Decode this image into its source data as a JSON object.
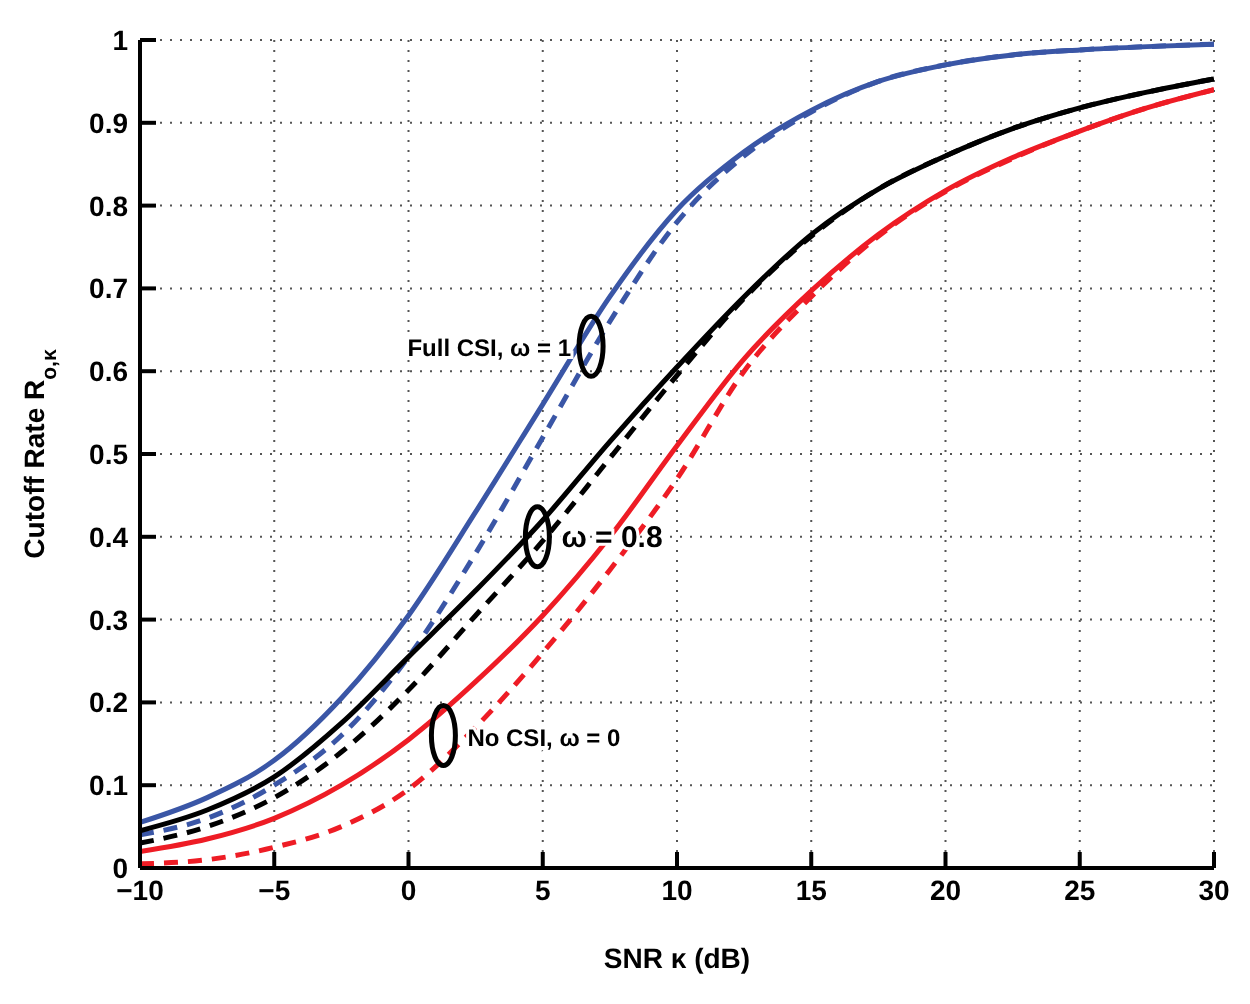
{
  "chart_data": {
    "type": "line",
    "xlabel": "SNR κ (dB)",
    "ylabel": "Cutoff Rate R$_{o,κ}$",
    "x": [
      -10,
      -7.5,
      -5,
      -2.5,
      0,
      2.5,
      5,
      7.5,
      10,
      12.5,
      15,
      17.5,
      20,
      22.5,
      25,
      27.5,
      30
    ],
    "series": [
      {
        "color": "#3a56a6",
        "line_style": "solid",
        "values": [
          0.055,
          0.085,
          0.13,
          0.205,
          0.305,
          0.43,
          0.56,
          0.69,
          0.795,
          0.865,
          0.915,
          0.95,
          0.97,
          0.982,
          0.988,
          0.992,
          0.995
        ]
      },
      {
        "color": "#3a56a6",
        "line_style": "dashed",
        "values": [
          0.04,
          0.06,
          0.1,
          0.16,
          0.255,
          0.38,
          0.52,
          0.66,
          0.78,
          0.86,
          0.913,
          0.95,
          0.97,
          0.982,
          0.988,
          0.992,
          0.995
        ]
      },
      {
        "color": "#000000",
        "line_style": "solid",
        "values": [
          0.045,
          0.07,
          0.11,
          0.175,
          0.255,
          0.335,
          0.42,
          0.515,
          0.605,
          0.69,
          0.765,
          0.82,
          0.86,
          0.893,
          0.918,
          0.937,
          0.953
        ]
      },
      {
        "color": "#000000",
        "line_style": "dashed",
        "values": [
          0.03,
          0.05,
          0.085,
          0.14,
          0.215,
          0.305,
          0.395,
          0.495,
          0.595,
          0.688,
          0.763,
          0.82,
          0.86,
          0.893,
          0.918,
          0.937,
          0.953
        ]
      },
      {
        "color": "#ee1c25",
        "line_style": "solid",
        "values": [
          0.02,
          0.035,
          0.06,
          0.1,
          0.155,
          0.225,
          0.305,
          0.4,
          0.51,
          0.615,
          0.697,
          0.765,
          0.818,
          0.858,
          0.89,
          0.918,
          0.94
        ]
      },
      {
        "color": "#ee1c25",
        "line_style": "dashed",
        "values": [
          0.005,
          0.01,
          0.025,
          0.05,
          0.095,
          0.17,
          0.26,
          0.36,
          0.47,
          0.6,
          0.69,
          0.763,
          0.817,
          0.857,
          0.89,
          0.918,
          0.94
        ]
      }
    ],
    "annotations": [
      {
        "text": "Full CSI, ω = 1",
        "x": 6.8,
        "y": 0.63
      },
      {
        "text": "ω = 0.8",
        "x": 4.8,
        "y": 0.4
      },
      {
        "text": "No CSI, ω = 0",
        "x": 1.3,
        "y": 0.16
      }
    ],
    "xlim": [
      -10,
      30
    ],
    "xticks": [
      -10,
      -5,
      0,
      5,
      10,
      15,
      20,
      25,
      30
    ],
    "ylim": [
      0,
      1
    ],
    "yticks": [
      0,
      0.1,
      0.2,
      0.3,
      0.4,
      0.5,
      0.6,
      0.7,
      0.8,
      0.9,
      1
    ],
    "grid": true,
    "legend": false,
    "marker": "none"
  }
}
